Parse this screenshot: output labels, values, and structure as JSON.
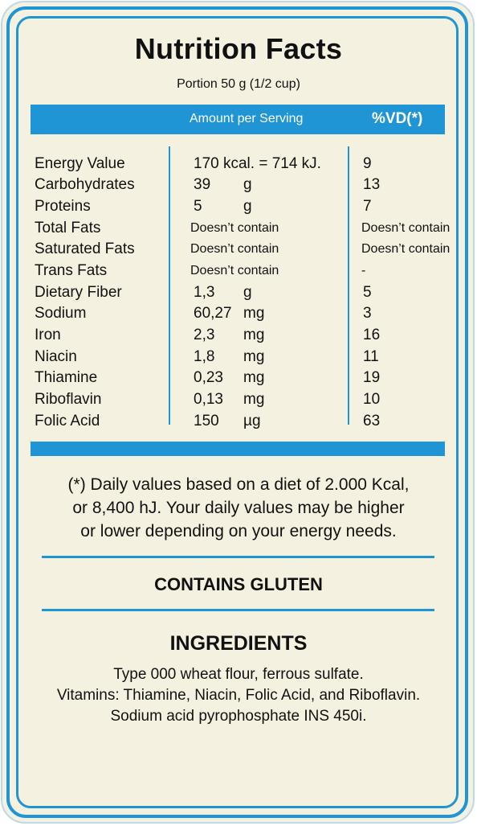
{
  "label": {
    "title": "Nutrition Facts",
    "portion": "Portion 50 g (1/2 cup)",
    "header": {
      "amount_per_serving": "Amount per Serving",
      "vd": "%VD(*)"
    },
    "rows": [
      {
        "name": "Energy Value",
        "amount": "170 kcal. = 714 kJ.",
        "unit": "",
        "vd": "9"
      },
      {
        "name": "Carbohydrates",
        "amount": "39",
        "unit": "g",
        "vd": "13"
      },
      {
        "name": "Proteins",
        "amount": "5",
        "unit": "g",
        "vd": "7"
      },
      {
        "name": "Total Fats",
        "amount": "Doesn’t contain",
        "unit": "",
        "vd": "Doesn’t contain"
      },
      {
        "name": "Saturated Fats",
        "amount": "Doesn’t contain",
        "unit": "",
        "vd": "Doesn’t contain"
      },
      {
        "name": "Trans Fats",
        "amount": "Doesn’t contain",
        "unit": "",
        "vd": "-"
      },
      {
        "name": "Dietary Fiber",
        "amount": "1,3",
        "unit": "g",
        "vd": "5"
      },
      {
        "name": "Sodium",
        "amount": "60,27",
        "unit": "mg",
        "vd": "3"
      },
      {
        "name": "Iron",
        "amount": "2,3",
        "unit": "mg",
        "vd": "16"
      },
      {
        "name": "Niacin",
        "amount": "1,8",
        "unit": "mg",
        "vd": "11"
      },
      {
        "name": "Thiamine",
        "amount": "0,23",
        "unit": "mg",
        "vd": "19"
      },
      {
        "name": "Riboflavin",
        "amount": "0,13",
        "unit": "mg",
        "vd": "10"
      },
      {
        "name": "Folic Acid",
        "amount": "150",
        "unit": "µg",
        "vd": "63"
      }
    ],
    "footnote": [
      "(*) Daily values based on a diet of 2.000 Kcal,",
      "or 8,400 hJ. Your daily values may be higher",
      "or lower depending on your energy needs."
    ],
    "allergen": "CONTAINS GLUTEN",
    "ingredients_title": "INGREDIENTS",
    "ingredients": [
      "Type 000 wheat flour, ferrous sulfate.",
      "Vitamins: Thiamine, Niacin, Folic Acid, and Riboflavin.",
      "Sodium acid pyrophosphate INS 450i."
    ]
  },
  "colors": {
    "accent_blue": "#1f95d6",
    "background": "#f5f1e1",
    "text": "#111111"
  }
}
